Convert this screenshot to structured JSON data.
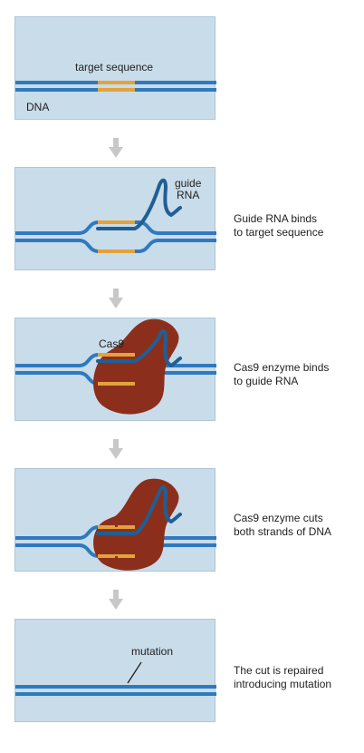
{
  "steps": [
    {
      "labels": {
        "target": "target sequence",
        "dna": "DNA"
      }
    },
    {
      "labels": {
        "guide_line1": "guide",
        "guide_line2": "RNA"
      },
      "caption": [
        "Guide RNA binds",
        "to target sequence"
      ]
    },
    {
      "labels": {
        "cas9": "Cas9"
      },
      "caption": [
        "Cas9 enzyme binds",
        "to guide RNA"
      ]
    },
    {
      "caption": [
        "Cas9 enzyme cuts",
        "both strands of DNA"
      ]
    },
    {
      "labels": {
        "mutation": "mutation"
      },
      "caption": [
        "The cut is repaired",
        "introducing mutation"
      ]
    }
  ],
  "colors": {
    "panel_bg": "#c9dcea",
    "dna": "#2f79bf",
    "target": "#e3a23c",
    "guide_rna": "#1f5f95",
    "cas9": "#8b2f1c",
    "mutation": "#c6362b",
    "arrow": "#c8c8c8"
  }
}
